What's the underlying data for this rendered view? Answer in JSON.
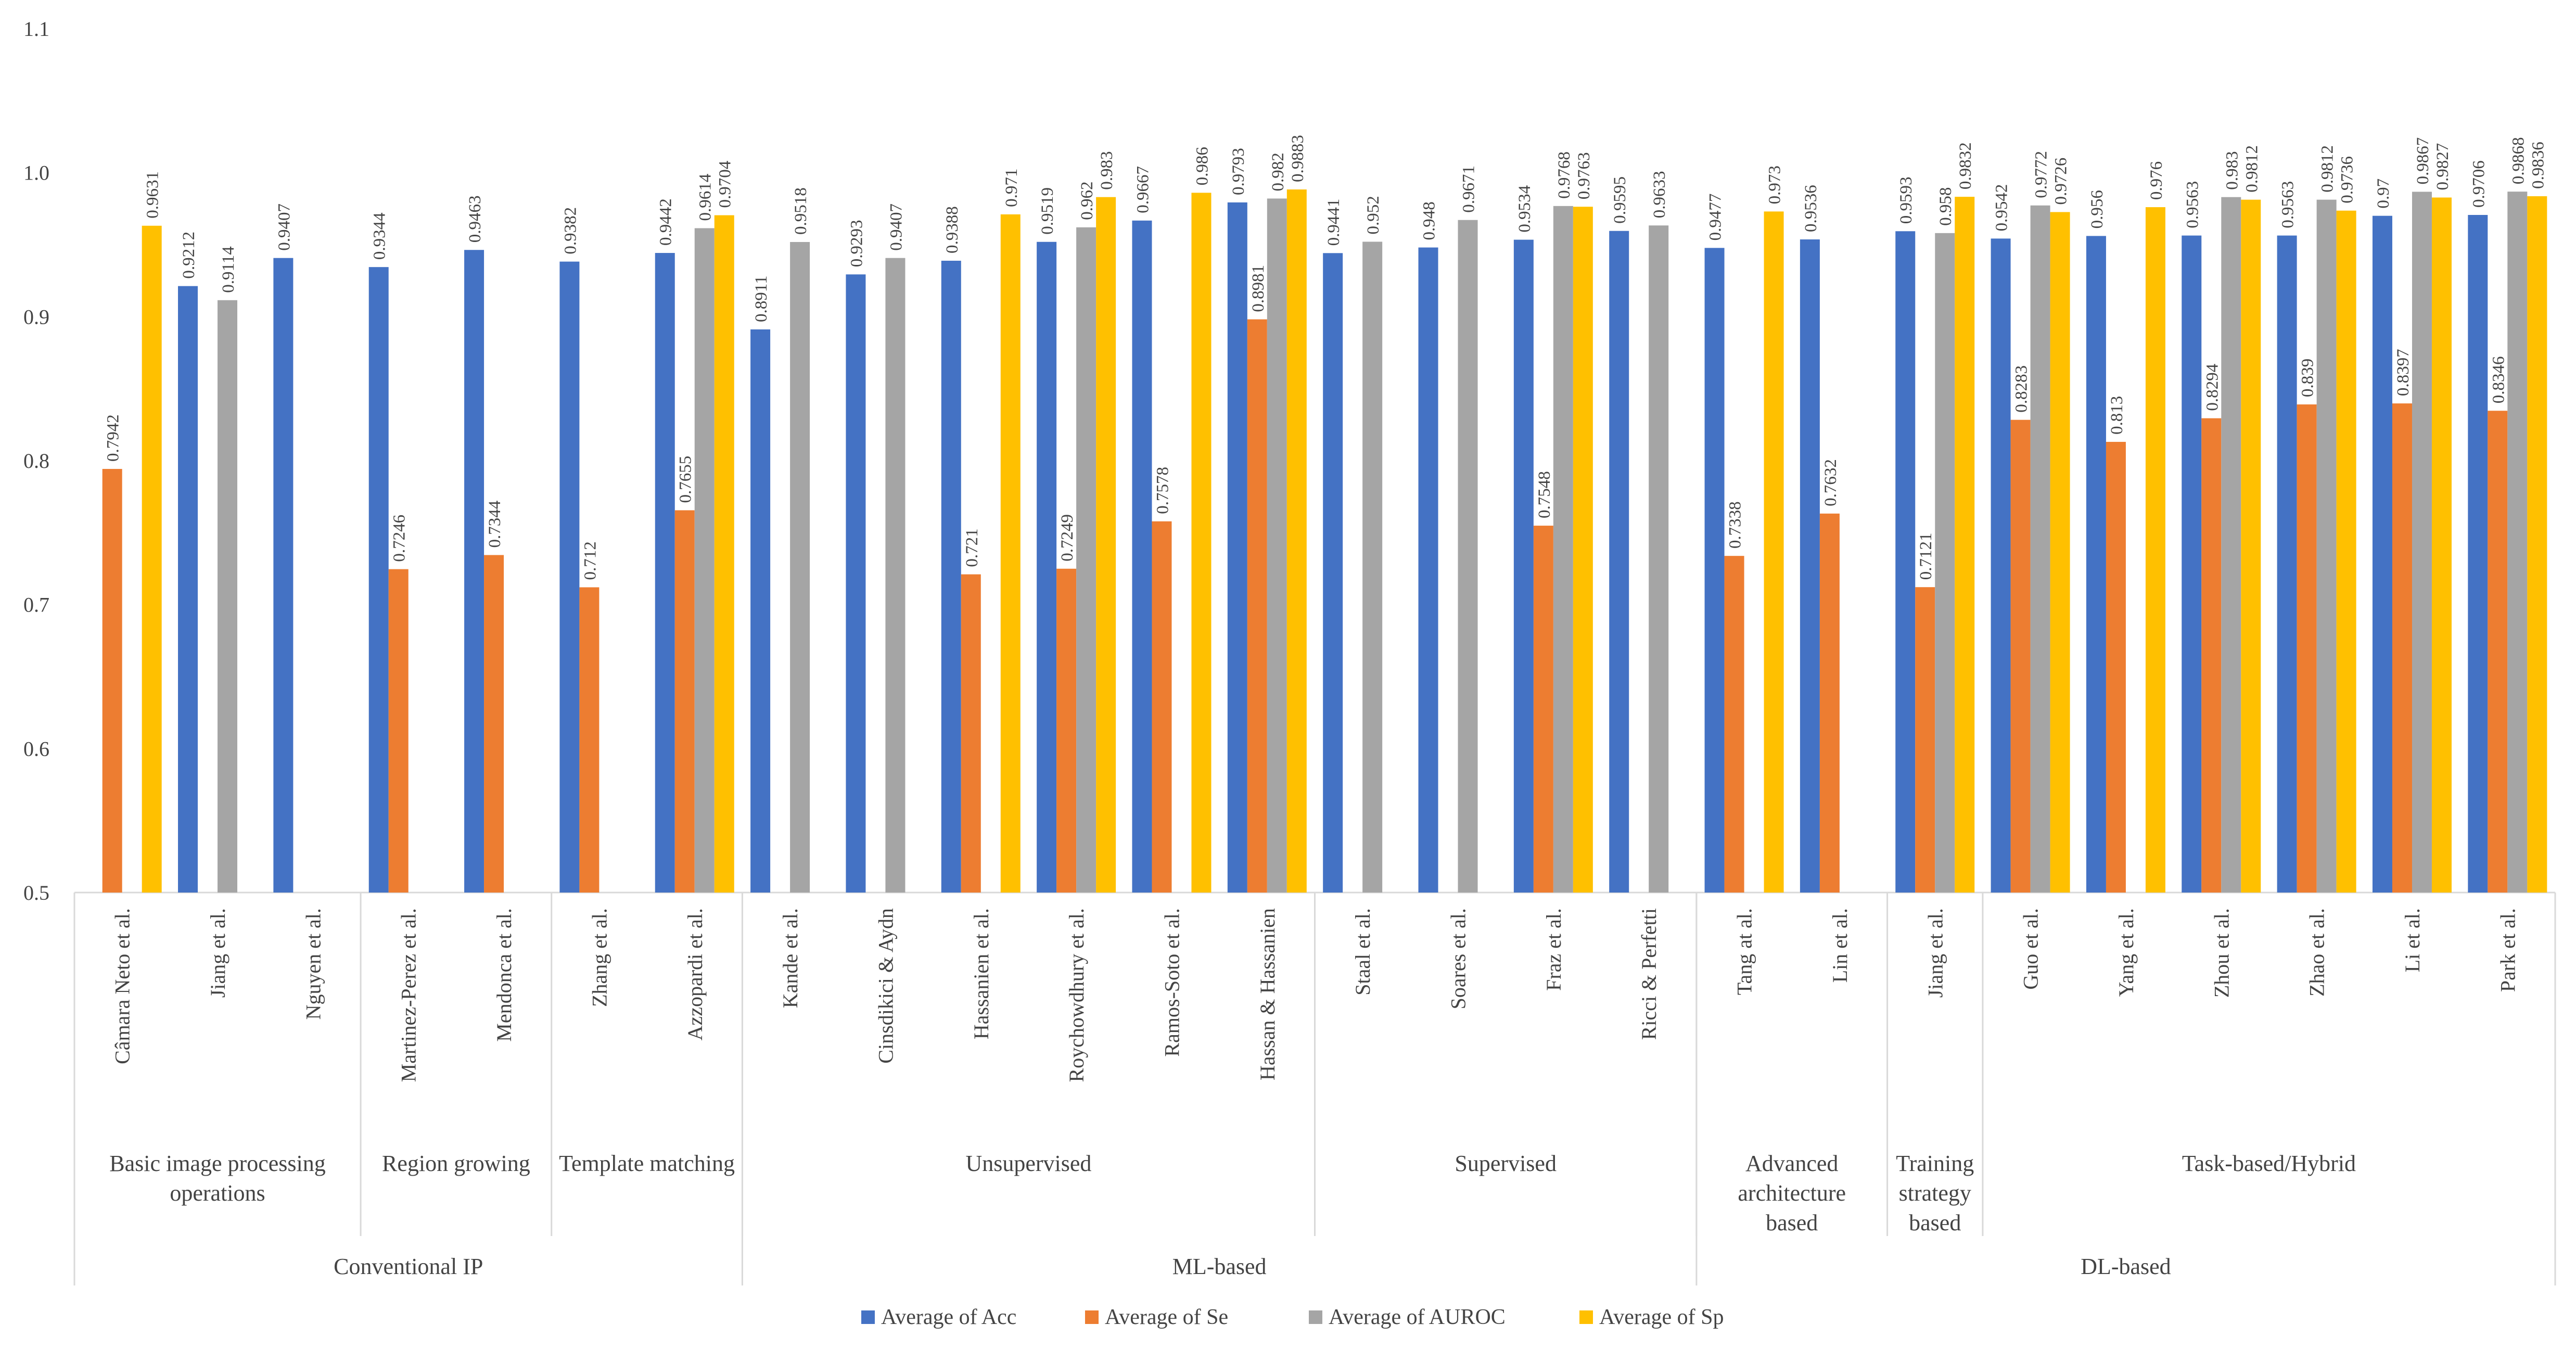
{
  "chart_data": {
    "type": "bar",
    "title": "",
    "xlabel": "",
    "ylabel": "",
    "ylim": [
      0.5,
      1.1
    ],
    "yticks": [
      "0.5",
      "0.6",
      "0.7",
      "0.8",
      "0.9",
      "1.0",
      "1.1"
    ],
    "grid": false,
    "legend_position": "bottom",
    "categories": [
      "Câmara Neto et al.",
      "Jiang et al.",
      "Nguyen et al.",
      "Martinez-Perez et al.",
      "Mendonca et al.",
      "Zhang et al.",
      "Azzopardi et al.",
      "Kande et al.",
      "Cinsdikici & Aydn",
      "Hassanien et al.",
      "Roychowdhury et al.",
      "Ramos-Soto et al.",
      "Hassan & Hassanien",
      "Staal et al.",
      "Soares et al.",
      "Fraz et al.",
      "Ricci & Perfetti",
      "Tang at al.",
      "Lin et al.",
      "Jiang et al.",
      "Guo et al.",
      "Yang et al.",
      "Zhou et al.",
      "Zhao et al.",
      "Li et al.",
      "Park et al."
    ],
    "subgroups": [
      {
        "label": "Basic image processing operations",
        "count": 3
      },
      {
        "label": "Region growing",
        "count": 2
      },
      {
        "label": "Template matching",
        "count": 2
      },
      {
        "label": "Unsupervised",
        "count": 6
      },
      {
        "label": "Supervised",
        "count": 4
      },
      {
        "label": "Advanced architecture based",
        "count": 2
      },
      {
        "label": "Training strategy based",
        "count": 1
      },
      {
        "label": "Task-based/Hybrid",
        "count": 6
      }
    ],
    "groups": [
      {
        "label": "Conventional IP",
        "count": 7
      },
      {
        "label": "ML-based",
        "count": 10
      },
      {
        "label": "DL-based",
        "count": 9
      }
    ],
    "series": [
      {
        "name": "Average of Acc",
        "color": "#4472C4",
        "values": [
          null,
          0.9212,
          0.9407,
          0.9344,
          0.9463,
          0.9382,
          0.9442,
          0.8911,
          0.9293,
          0.9388,
          0.9519,
          0.9667,
          0.9793,
          0.9441,
          0.948,
          0.9534,
          0.9595,
          0.9477,
          0.9536,
          0.9593,
          0.9542,
          0.956,
          0.9563,
          0.9563,
          0.97,
          0.9706
        ],
        "labels": [
          "",
          "0.9212",
          "0.9407",
          "0.9344",
          "0.9463",
          "0.9382",
          "0.9442",
          "0.8911",
          "0.9293",
          "0.9388",
          "0.9519",
          "0.9667",
          "0.9793",
          "0.9441",
          "0.948",
          "0.9534",
          "0.9595",
          "0.9477",
          "0.9536",
          "0.9593",
          "0.9542",
          "0.956",
          "0.9563",
          "0.9563",
          "0.97",
          "0.9706"
        ]
      },
      {
        "name": "Average of Se",
        "color": "#ED7D31",
        "values": [
          0.7942,
          null,
          null,
          0.7246,
          0.7344,
          0.712,
          0.7655,
          null,
          null,
          0.721,
          0.7249,
          0.7578,
          0.8981,
          null,
          null,
          0.7548,
          null,
          0.7338,
          0.7632,
          0.7121,
          0.8283,
          0.813,
          0.8294,
          0.839,
          0.8397,
          0.8346
        ],
        "labels": [
          "0.7942",
          "",
          "",
          "0.7246",
          "0.7344",
          "0.712",
          "0.7655",
          "",
          "",
          "0.721",
          "0.7249",
          "0.7578",
          "0.8981",
          "",
          "",
          "0.7548",
          "",
          "0.7338",
          "0.7632",
          "0.7121",
          "0.8283",
          "0.813",
          "0.8294",
          "0.839",
          "0.8397",
          "0.8346"
        ]
      },
      {
        "name": "Average of AUROC",
        "color": "#A5A5A5",
        "values": [
          null,
          0.9114,
          null,
          null,
          null,
          null,
          0.9614,
          0.9518,
          0.9407,
          null,
          0.962,
          null,
          0.982,
          0.952,
          0.9671,
          0.9768,
          0.9633,
          null,
          null,
          0.958,
          0.9772,
          null,
          0.983,
          0.9812,
          0.9867,
          0.9868
        ],
        "labels": [
          "",
          "0.9114",
          "",
          "",
          "",
          "",
          "0.9614",
          "0.9518",
          "0.9407",
          "",
          "0.962",
          "",
          "0.982",
          "0.952",
          "0.9671",
          "0.9768",
          "0.9633",
          "",
          "",
          "0.958",
          "0.9772",
          "",
          "0.983",
          "0.9812",
          "0.9867",
          "0.9868"
        ]
      },
      {
        "name": "Average of Sp",
        "color": "#FFC000",
        "values": [
          0.9631,
          null,
          null,
          null,
          null,
          null,
          0.9704,
          null,
          null,
          0.971,
          0.983,
          0.986,
          0.9883,
          null,
          null,
          0.9763,
          null,
          0.973,
          null,
          0.9832,
          0.9726,
          0.976,
          0.9812,
          0.9736,
          0.9827,
          0.9836
        ],
        "labels": [
          "0.9631",
          "",
          "",
          "",
          "",
          "",
          "0.9704",
          "",
          "",
          "0.971",
          "0.983",
          "0.986",
          "0.9883",
          "",
          "",
          "0.9763",
          "",
          "0.973",
          "",
          "0.9832",
          "0.9726",
          "0.976",
          "0.9812",
          "0.9736",
          "0.9827",
          "0.9836"
        ]
      }
    ]
  }
}
